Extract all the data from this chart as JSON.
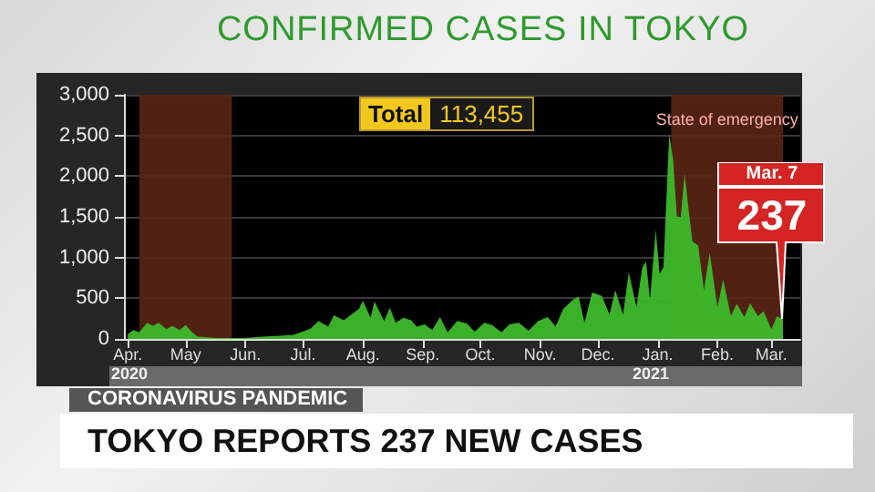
{
  "chart_data": {
    "type": "area",
    "title": "CONFIRMED CASES IN TOKYO",
    "x": [
      "2020-04-01",
      "2020-04-04",
      "2020-04-07",
      "2020-04-11",
      "2020-04-14",
      "2020-04-17",
      "2020-04-21",
      "2020-04-24",
      "2020-04-28",
      "2020-05-01",
      "2020-05-04",
      "2020-05-07",
      "2020-05-12",
      "2020-05-18",
      "2020-05-25",
      "2020-05-31",
      "2020-06-05",
      "2020-06-12",
      "2020-06-19",
      "2020-06-26",
      "2020-07-02",
      "2020-07-05",
      "2020-07-09",
      "2020-07-14",
      "2020-07-17",
      "2020-07-22",
      "2020-07-26",
      "2020-07-30",
      "2020-08-01",
      "2020-08-05",
      "2020-08-07",
      "2020-08-12",
      "2020-08-15",
      "2020-08-18",
      "2020-08-22",
      "2020-08-26",
      "2020-08-29",
      "2020-09-02",
      "2020-09-06",
      "2020-09-10",
      "2020-09-14",
      "2020-09-19",
      "2020-09-24",
      "2020-09-28",
      "2020-10-03",
      "2020-10-07",
      "2020-10-12",
      "2020-10-16",
      "2020-10-21",
      "2020-10-26",
      "2020-10-31",
      "2020-11-05",
      "2020-11-09",
      "2020-11-13",
      "2020-11-18",
      "2020-11-21",
      "2020-11-24",
      "2020-11-28",
      "2020-12-03",
      "2020-12-07",
      "2020-12-10",
      "2020-12-14",
      "2020-12-17",
      "2020-12-21",
      "2020-12-24",
      "2020-12-26",
      "2020-12-28",
      "2020-12-31",
      "2021-01-02",
      "2021-01-04",
      "2021-01-07",
      "2021-01-09",
      "2021-01-11",
      "2021-01-13",
      "2021-01-15",
      "2021-01-17",
      "2021-01-19",
      "2021-01-22",
      "2021-01-25",
      "2021-01-28",
      "2021-02-01",
      "2021-02-04",
      "2021-02-08",
      "2021-02-11",
      "2021-02-15",
      "2021-02-18",
      "2021-02-22",
      "2021-02-25",
      "2021-03-01",
      "2021-03-04",
      "2021-03-07"
    ],
    "series": [
      {
        "color": "#3dbb2a",
        "values": [
          60,
          110,
          80,
          200,
          160,
          200,
          120,
          160,
          110,
          170,
          90,
          30,
          20,
          10,
          10,
          10,
          20,
          30,
          40,
          50,
          100,
          130,
          220,
          150,
          290,
          230,
          300,
          370,
          470,
          260,
          460,
          220,
          380,
          200,
          260,
          230,
          150,
          180,
          110,
          270,
          80,
          220,
          190,
          90,
          200,
          170,
          80,
          180,
          200,
          100,
          220,
          270,
          150,
          370,
          480,
          520,
          200,
          570,
          530,
          300,
          600,
          300,
          820,
          390,
          880,
          950,
          480,
          1340,
          800,
          880,
          2520,
          2200,
          1500,
          1500,
          2030,
          1600,
          1200,
          1150,
          600,
          1060,
          390,
          730,
          280,
          430,
          270,
          440,
          280,
          340,
          120,
          280,
          237
        ]
      }
    ],
    "xlim": [
      "2020-03-30",
      "2021-03-16"
    ],
    "xticks": [
      {
        "value": "2020-04-01",
        "label": "Apr."
      },
      {
        "value": "2020-05-01",
        "label": "May"
      },
      {
        "value": "2020-06-01",
        "label": "Jun."
      },
      {
        "value": "2020-07-01",
        "label": "Jul."
      },
      {
        "value": "2020-08-01",
        "label": "Aug."
      },
      {
        "value": "2020-09-01",
        "label": "Sep."
      },
      {
        "value": "2020-10-01",
        "label": "Oct."
      },
      {
        "value": "2020-11-01",
        "label": "Nov."
      },
      {
        "value": "2020-12-01",
        "label": "Dec."
      },
      {
        "value": "2021-01-01",
        "label": "Jan."
      },
      {
        "value": "2021-02-01",
        "label": "Feb."
      },
      {
        "value": "2021-03-01",
        "label": "Mar."
      }
    ],
    "ylim": [
      0,
      3000
    ],
    "yticks": [
      0,
      500,
      {
        "value": 1000,
        "label": "1,000"
      },
      {
        "value": 1500,
        "label": "1,500"
      },
      {
        "value": 2000,
        "label": "2,000"
      },
      {
        "value": 2500,
        "label": "2,500"
      },
      {
        "value": 3000,
        "label": "3,000"
      }
    ],
    "grid": "y",
    "marker": "none",
    "bands": [
      {
        "axis": "x",
        "from": "2020-04-07",
        "to": "2020-05-25",
        "color": "#5a2614"
      },
      {
        "axis": "x",
        "from": "2021-01-08",
        "to": "2021-03-07",
        "label": "State of emergency",
        "color": "#5a2614"
      }
    ],
    "annotations": [
      "Total 113,455",
      "2020",
      "2021",
      "CORONAVIRUS PANDEMIC",
      "TOKYO REPORTS 237 NEW CASES",
      "Mar. 7",
      {
        "text": "237",
        "x": "2021-03-07",
        "y": 237
      }
    ]
  }
}
